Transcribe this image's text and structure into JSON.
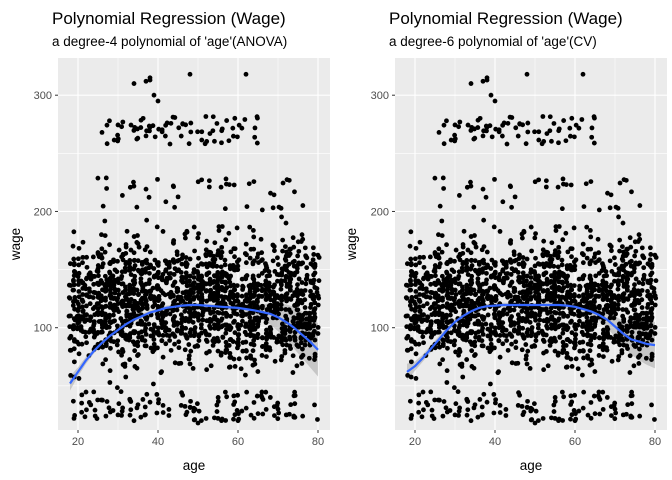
{
  "chart_data": [
    {
      "type": "scatter",
      "title": "Polynomial Regression (Wage)",
      "subtitle": "a degree-4 polynomial of 'age'(ANOVA)",
      "xlabel": "age",
      "ylabel": "wage",
      "xlim": [
        15,
        83
      ],
      "ylim": [
        12,
        332
      ],
      "xticks": [
        20,
        40,
        60,
        80
      ],
      "yticks": [
        100,
        200,
        300
      ],
      "grid": true,
      "background": "#ebebeb",
      "point_color": "#000000",
      "series": [
        {
          "kind": "fit-line",
          "color": "#3366ff",
          "band_color": "#999999",
          "x": [
            18,
            20,
            22,
            24,
            26,
            28,
            30,
            32,
            34,
            36,
            38,
            40,
            42,
            44,
            46,
            48,
            50,
            52,
            54,
            56,
            58,
            60,
            62,
            64,
            66,
            68,
            70,
            72,
            74,
            76,
            78,
            80
          ],
          "y": [
            52,
            62,
            72,
            80,
            87,
            93,
            98,
            103,
            107,
            110,
            113,
            115,
            117,
            118,
            119,
            119.5,
            119.5,
            119,
            118.5,
            118,
            117.5,
            117,
            116,
            115,
            113.5,
            112,
            109,
            105,
            100,
            94,
            88,
            81
          ],
          "lower": [
            46,
            58,
            69,
            78,
            85,
            91,
            96,
            101,
            105,
            108,
            111,
            113,
            115,
            116,
            117,
            117.5,
            117.5,
            117,
            116.5,
            116,
            115,
            114,
            112,
            110,
            107,
            103,
            97,
            90,
            82,
            74,
            66,
            58
          ],
          "upper": [
            58,
            66,
            75,
            82,
            89,
            95,
            100,
            105,
            109,
            112,
            115,
            117,
            119,
            120,
            121,
            121.5,
            121.5,
            121,
            120.5,
            120,
            120,
            120,
            120,
            120,
            120,
            121,
            121,
            120,
            118,
            114,
            110,
            104
          ]
        }
      ],
      "clusters": [
        {
          "x": [
            18,
            80
          ],
          "y": [
            45,
            200
          ],
          "n": 1700
        },
        {
          "x": [
            18,
            80
          ],
          "y": [
            20,
            45
          ],
          "n": 120
        },
        {
          "x": [
            25,
            80
          ],
          "y": [
            200,
            230
          ],
          "n": 40
        },
        {
          "x": [
            27,
            65
          ],
          "y": [
            258,
            282
          ],
          "n": 70
        }
      ],
      "points": [
        [
          34,
          310
        ],
        [
          37,
          312
        ],
        [
          38,
          315
        ],
        [
          38,
          313
        ],
        [
          39,
          300
        ],
        [
          40,
          295
        ],
        [
          48,
          318
        ],
        [
          62,
          318
        ],
        [
          37,
          265
        ],
        [
          26,
          268
        ],
        [
          43,
          258
        ],
        [
          57,
          228
        ],
        [
          72,
          190
        ],
        [
          76,
          180
        ],
        [
          79,
          102
        ],
        [
          80,
          95
        ],
        [
          78,
          85
        ],
        [
          70,
          30
        ],
        [
          60,
          20
        ],
        [
          55,
          22
        ],
        [
          30,
          25
        ],
        [
          34,
          20
        ],
        [
          19,
          22
        ],
        [
          50,
          18
        ],
        [
          66,
          40
        ]
      ]
    },
    {
      "type": "scatter",
      "title": "Polynomial Regression (Wage)",
      "subtitle": "a degree-6 polynomial of 'age'(CV)",
      "xlabel": "age",
      "ylabel": "wage",
      "xlim": [
        15,
        83
      ],
      "ylim": [
        12,
        332
      ],
      "xticks": [
        20,
        40,
        60,
        80
      ],
      "yticks": [
        100,
        200,
        300
      ],
      "grid": true,
      "background": "#ebebeb",
      "point_color": "#000000",
      "series": [
        {
          "kind": "fit-line",
          "color": "#3366ff",
          "band_color": "#999999",
          "x": [
            18,
            20,
            22,
            24,
            26,
            28,
            30,
            32,
            34,
            36,
            38,
            40,
            42,
            44,
            46,
            48,
            50,
            52,
            54,
            56,
            58,
            60,
            62,
            64,
            66,
            68,
            70,
            72,
            74,
            76,
            78,
            80
          ],
          "y": [
            62,
            67,
            74,
            82,
            90,
            98,
            105,
            110,
            114,
            117,
            118.5,
            119,
            119.5,
            119.5,
            119.5,
            119.5,
            119.5,
            119.5,
            119.5,
            119.5,
            119,
            118,
            116,
            114,
            111,
            107,
            101,
            95,
            90,
            88,
            86,
            85
          ],
          "lower": [
            55,
            63,
            71,
            79,
            87,
            95,
            102,
            108,
            112,
            115,
            116.5,
            117,
            117.5,
            117.5,
            117.5,
            117.5,
            117.5,
            117.5,
            117,
            116.5,
            116,
            115,
            113,
            110,
            106,
            100,
            92,
            84,
            77,
            72,
            68,
            65
          ],
          "upper": [
            69,
            71,
            77,
            85,
            93,
            101,
            108,
            112,
            116,
            119,
            120.5,
            121,
            121.5,
            121.5,
            121.5,
            121.5,
            121.5,
            121.5,
            122,
            122.5,
            122,
            121,
            119,
            118,
            116,
            114,
            110,
            106,
            103,
            104,
            105,
            105
          ]
        }
      ],
      "clusters": [
        {
          "x": [
            18,
            80
          ],
          "y": [
            45,
            200
          ],
          "n": 1700
        },
        {
          "x": [
            18,
            80
          ],
          "y": [
            20,
            45
          ],
          "n": 120
        },
        {
          "x": [
            25,
            80
          ],
          "y": [
            200,
            230
          ],
          "n": 40
        },
        {
          "x": [
            27,
            65
          ],
          "y": [
            258,
            282
          ],
          "n": 70
        }
      ],
      "points": [
        [
          34,
          310
        ],
        [
          37,
          312
        ],
        [
          38,
          315
        ],
        [
          38,
          313
        ],
        [
          39,
          300
        ],
        [
          40,
          295
        ],
        [
          48,
          318
        ],
        [
          62,
          318
        ],
        [
          37,
          265
        ],
        [
          26,
          268
        ],
        [
          43,
          258
        ],
        [
          57,
          228
        ],
        [
          72,
          190
        ],
        [
          76,
          180
        ],
        [
          79,
          102
        ],
        [
          80,
          95
        ],
        [
          78,
          85
        ],
        [
          70,
          30
        ],
        [
          60,
          20
        ],
        [
          55,
          22
        ],
        [
          30,
          25
        ],
        [
          34,
          20
        ],
        [
          19,
          22
        ],
        [
          50,
          18
        ],
        [
          66,
          40
        ]
      ]
    }
  ]
}
